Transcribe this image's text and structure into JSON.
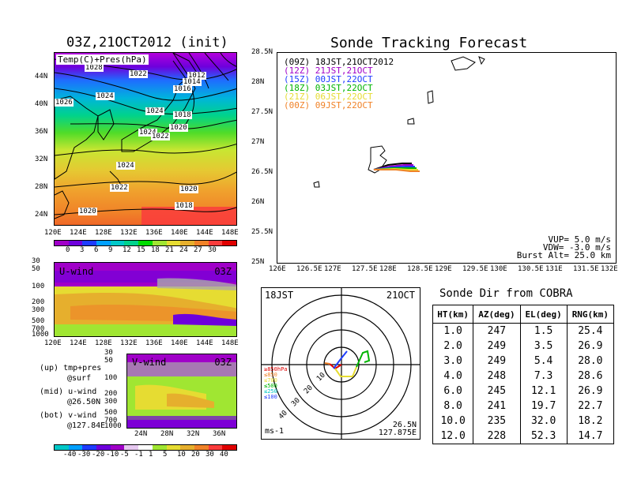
{
  "map_panel": {
    "title": "03Z,21OCT2012 (init)",
    "label": "Temp(C)+Pres(hPa)",
    "lat_ticks": [
      "44N",
      "40N",
      "36N",
      "32N",
      "28N",
      "24N"
    ],
    "lon_ticks": [
      "120E",
      "124E",
      "128E",
      "132E",
      "136E",
      "140E",
      "144E",
      "148E"
    ],
    "isobar_labels": [
      "1028",
      "1028",
      "1026",
      "1022",
      "1024",
      "1012",
      "1014",
      "1016",
      "1024",
      "1018",
      "1020",
      "1024",
      "1022",
      "1024",
      "1022",
      "1020",
      "1018",
      "1020"
    ],
    "colorbar_labels": [
      "0",
      "3",
      "6",
      "9",
      "12",
      "15",
      "18",
      "21",
      "24",
      "27",
      "30"
    ],
    "colorbar_colors": [
      "#a000c8",
      "#6e00dc",
      "#1e3cff",
      "#00a0ff",
      "#00c8c8",
      "#00d28c",
      "#00dc00",
      "#a0e632",
      "#e6dc32",
      "#e6af2d",
      "#f08228",
      "#fa3c3c",
      "#e00000"
    ]
  },
  "uwind_panel": {
    "label": "U-wind",
    "time": "03Z",
    "p_ticks": [
      "30",
      "50",
      "100",
      "200",
      "300",
      "500",
      "700",
      "1000"
    ],
    "lon_ticks": [
      "120E",
      "124E",
      "128E",
      "132E",
      "136E",
      "140E",
      "144E",
      "148E"
    ]
  },
  "vwind_panel": {
    "label": "V-wind",
    "time": "03Z",
    "p_ticks": [
      "30",
      "50",
      "100",
      "200",
      "300",
      "500",
      "700",
      "1000"
    ],
    "lat_ticks": [
      "24N",
      "28N",
      "32N",
      "36N"
    ],
    "colorbar_labels": [
      "-40",
      "-30",
      "-20",
      "-10",
      "-5",
      "-1",
      "1",
      "5",
      "10",
      "20",
      "30",
      "40"
    ],
    "colorbar_colors": [
      "#00c8c8",
      "#00a0ff",
      "#1e3cff",
      "#6e00dc",
      "#a000c8",
      "#e6c8f0",
      "#ffffff",
      "#a0e632",
      "#e6dc32",
      "#e6af2d",
      "#f08228",
      "#fa3c3c",
      "#e00000"
    ]
  },
  "notes": {
    "line1": "(up) tmp+pres",
    "line2": "@surf",
    "line3": "(mid) u-wind",
    "line4": "@26.50N",
    "line5": "(bot) v-wind",
    "line6": "@127.84E"
  },
  "tracking": {
    "title": "Sonde Tracking Forecast",
    "legend": [
      {
        "text": "(09Z) 18JST,21OCT2012",
        "color": "#000000"
      },
      {
        "text": "(12Z) 21JST,21OCT",
        "color": "#a000c8"
      },
      {
        "text": "(15Z) 00JST,22OCT",
        "color": "#1e3cff"
      },
      {
        "text": "(18Z) 03JST,22OCT",
        "color": "#00b400"
      },
      {
        "text": "(21Z) 06JST,22OCT",
        "color": "#e6dc32"
      },
      {
        "text": "(00Z) 09JST,22OCT",
        "color": "#f08228"
      }
    ],
    "lat_ticks": [
      "28.5N",
      "28N",
      "27.5N",
      "27N",
      "26.5N",
      "26N",
      "25.5N",
      "25N"
    ],
    "lon_ticks": [
      "126E",
      "126.5E",
      "127E",
      "127.5E",
      "128E",
      "128.5E",
      "129E",
      "129.5E",
      "130E",
      "130.5E",
      "131E",
      "131.5E",
      "132E"
    ],
    "vup": "VUP=  5.0 m/s",
    "vdw": "VDW= -3.0 m/s",
    "burst": "Burst Alt= 25.0 km"
  },
  "polar": {
    "time": "18JST",
    "date": "21OCT",
    "ring_labels": [
      "10",
      "20",
      "30",
      "40"
    ],
    "levels": [
      {
        "text": "≥850hPa",
        "color": "#e00000"
      },
      {
        "text": "≤850",
        "color": "#f08228"
      },
      {
        "text": "≤700",
        "color": "#e6dc32"
      },
      {
        "text": "≤500",
        "color": "#00b400"
      },
      {
        "text": "≤250",
        "color": "#00c8c8"
      },
      {
        "text": "≤100",
        "color": "#1e3cff"
      }
    ],
    "unit": "ms-1",
    "pos_lat": "26.5N",
    "pos_lon": "127.875E"
  },
  "cobra": {
    "title": "Sonde Dir from COBRA",
    "headers": [
      "HT(km)",
      "AZ(deg)",
      "EL(deg)",
      "RNG(km)"
    ],
    "rows": [
      [
        "1.0",
        "247",
        "1.5",
        "25.4"
      ],
      [
        "2.0",
        "249",
        "3.5",
        "26.9"
      ],
      [
        "3.0",
        "249",
        "5.4",
        "28.0"
      ],
      [
        "4.0",
        "248",
        "7.3",
        "28.6"
      ],
      [
        "6.0",
        "245",
        "12.1",
        "26.9"
      ],
      [
        "8.0",
        "241",
        "19.7",
        "22.7"
      ],
      [
        "10.0",
        "235",
        "32.0",
        "18.2"
      ],
      [
        "12.0",
        "228",
        "52.3",
        "14.7"
      ]
    ]
  },
  "chart_data": [
    {
      "type": "heatmap",
      "title": "03Z,21OCT2012 (init)",
      "label": "Temp(C)+Pres(hPa)",
      "xlim": [
        "120E",
        "148E"
      ],
      "ylim": [
        "22N",
        "47N"
      ],
      "colorbar_levels": [
        0,
        3,
        6,
        9,
        12,
        15,
        18,
        21,
        24,
        27,
        30
      ]
    },
    {
      "type": "heatmap",
      "label": "U-wind",
      "time": "03Z",
      "xlim": [
        "120E",
        "148E"
      ],
      "y_pressure_hPa": [
        30,
        1000
      ]
    },
    {
      "type": "heatmap",
      "label": "V-wind",
      "time": "03Z",
      "xlim": [
        "22N",
        "38N"
      ],
      "y_pressure_hPa": [
        30,
        1000
      ],
      "colorbar_levels": [
        -40,
        -30,
        -20,
        -10,
        -5,
        -1,
        1,
        5,
        10,
        20,
        30,
        40
      ]
    },
    {
      "type": "line",
      "title": "Sonde Tracking Forecast",
      "xlim": [
        126,
        132
      ],
      "ylim": [
        25,
        28.5
      ],
      "vup_ms": 5.0,
      "vdw_ms": -3.0,
      "burst_alt_km": 25.0
    },
    {
      "type": "table",
      "title": "Sonde Dir from COBRA",
      "columns": [
        "HT(km)",
        "AZ(deg)",
        "EL(deg)",
        "RNG(km)"
      ],
      "rows": [
        [
          1.0,
          247,
          1.5,
          25.4
        ],
        [
          2.0,
          249,
          3.5,
          26.9
        ],
        [
          3.0,
          249,
          5.4,
          28.0
        ],
        [
          4.0,
          248,
          7.3,
          28.6
        ],
        [
          6.0,
          245,
          12.1,
          26.9
        ],
        [
          8.0,
          241,
          19.7,
          22.7
        ],
        [
          10.0,
          235,
          32.0,
          18.2
        ],
        [
          12.0,
          228,
          52.3,
          14.7
        ]
      ]
    }
  ]
}
